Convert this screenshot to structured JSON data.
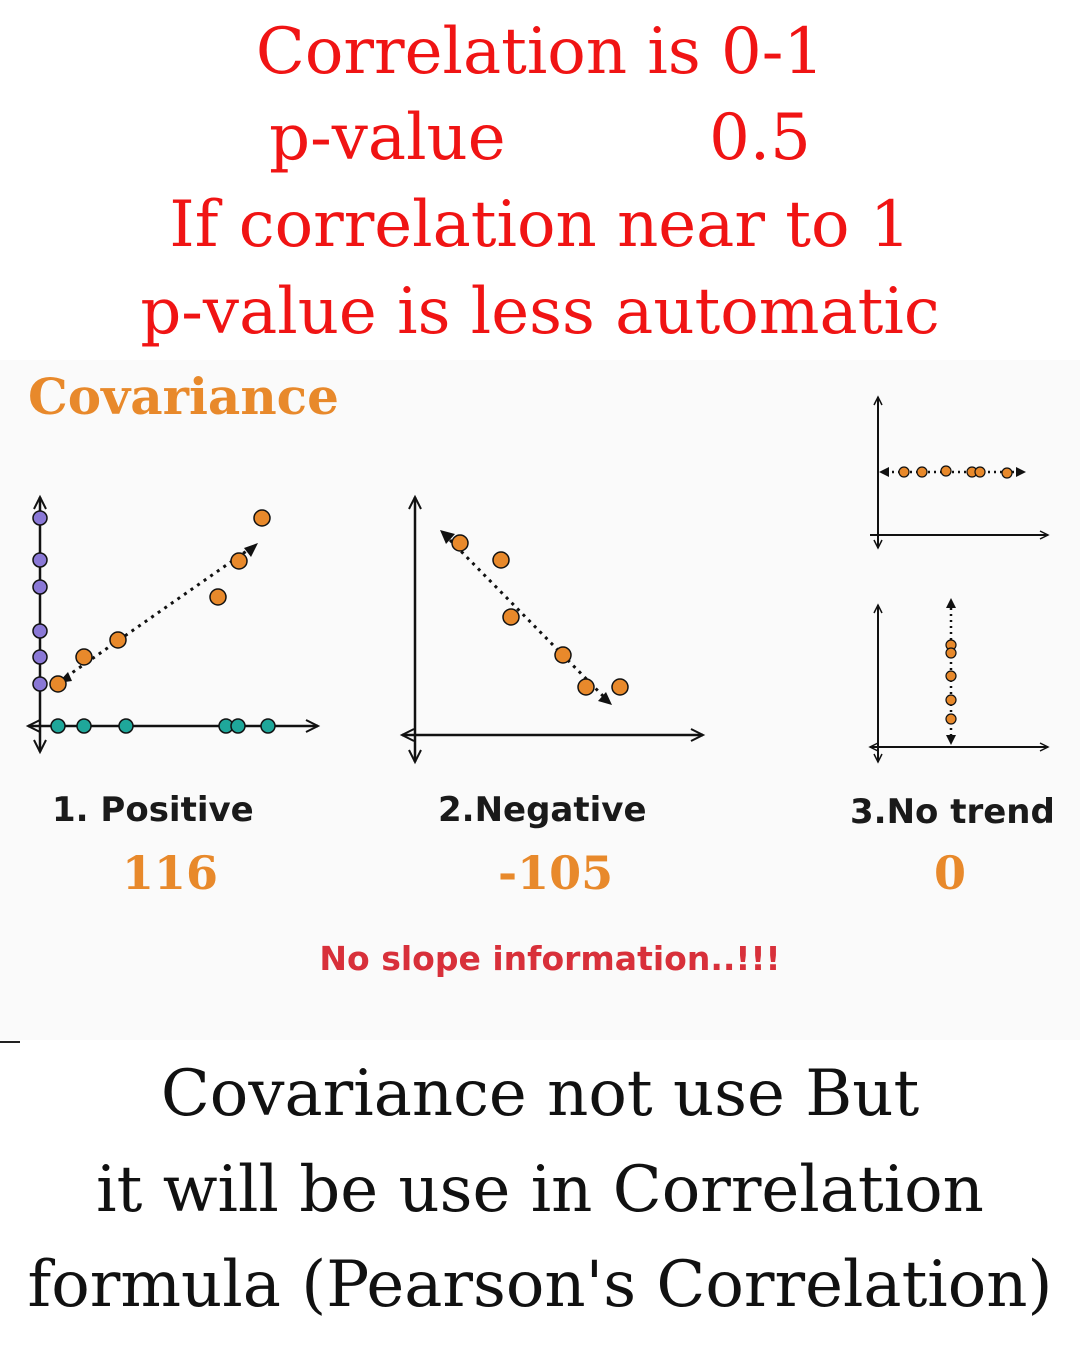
{
  "header": {
    "line1": "Correlation is 0-1",
    "line2": "p-value          0.5",
    "line3": "If correlation near to 1",
    "line4": "p-value is less automatic"
  },
  "covariance": {
    "title": "Covariance",
    "cases": [
      {
        "label": "1. Positive",
        "value": "116"
      },
      {
        "label": "2.Negative",
        "value": "-105"
      },
      {
        "label": "3.No trend",
        "value": "0"
      }
    ],
    "note": "No slope information..!!!"
  },
  "footer": {
    "line1": "Covariance not use But",
    "line2": "it will be use in Correlation",
    "line3": "formula (Pearson's Correlation)"
  },
  "colors": {
    "red_text": "#f01414",
    "orange": "#e8892b",
    "purple": "#8a78d6",
    "teal": "#1fa79a",
    "note_red": "#d8303a"
  }
}
